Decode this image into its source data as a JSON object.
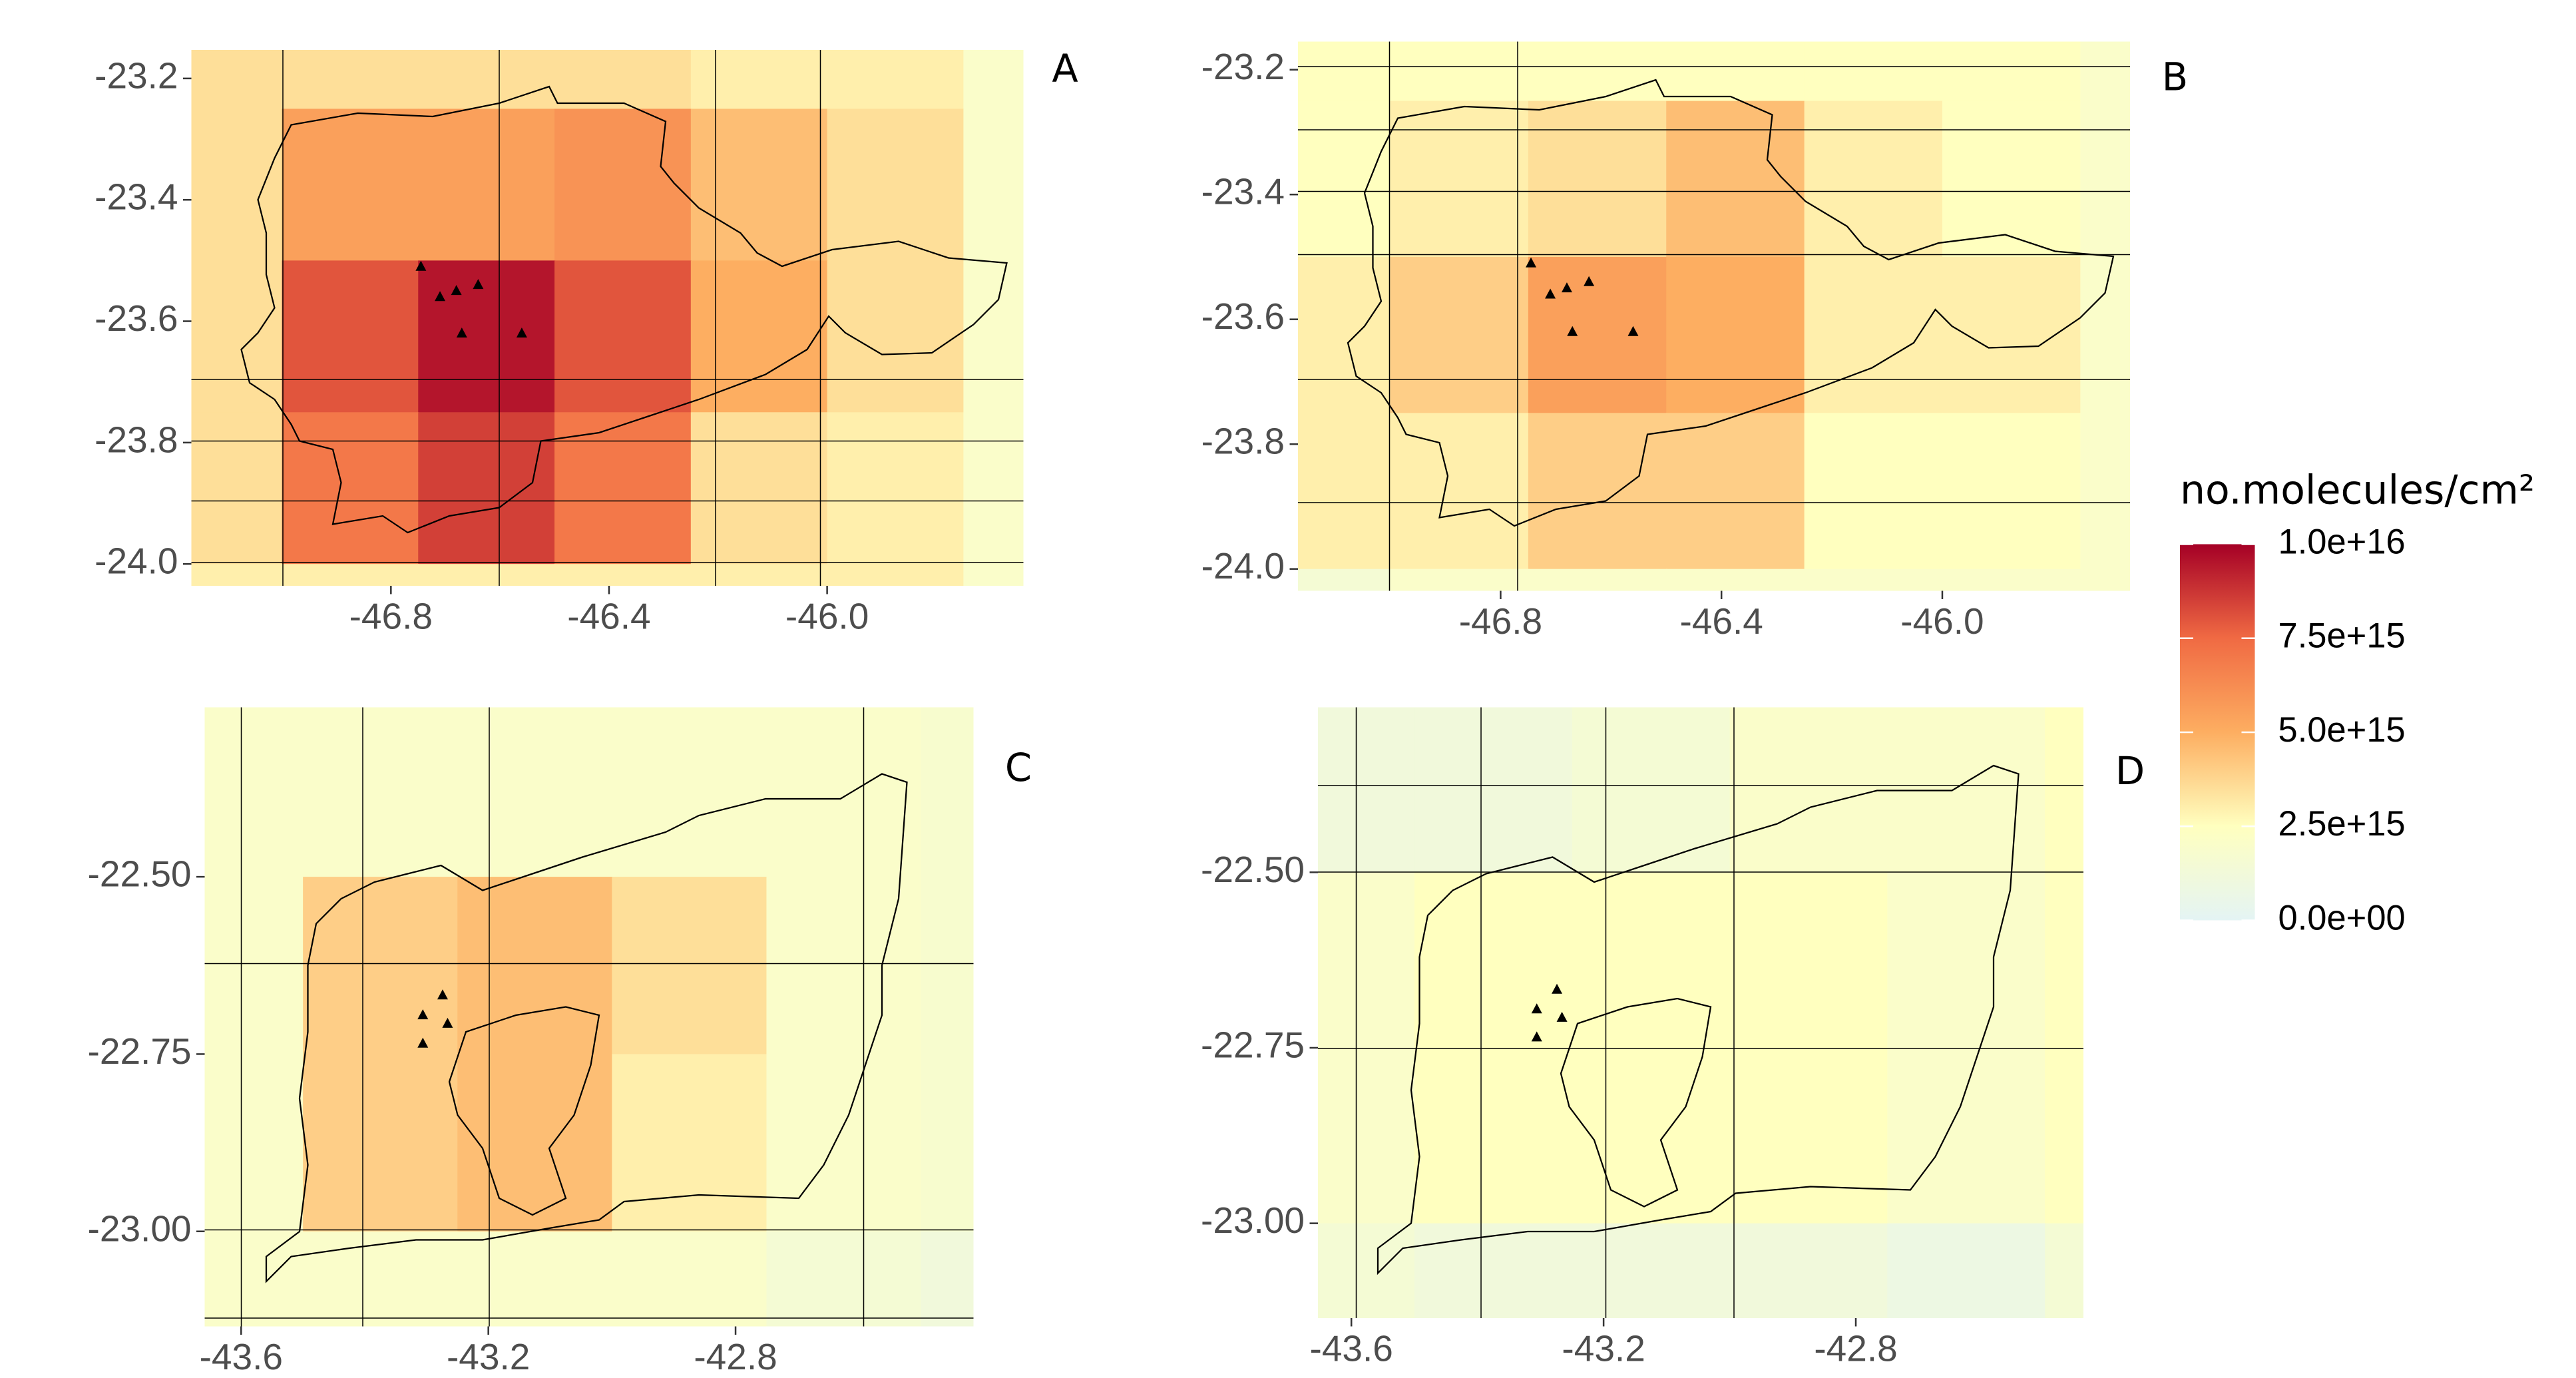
{
  "chart_data": [
    {
      "type": "heatmap",
      "label": "A",
      "x_edges": [
        -47.25,
        -47.0,
        -46.75,
        -46.5,
        -46.25,
        -46.0,
        -45.75,
        -45.5
      ],
      "y_edges": [
        -23.0,
        -23.25,
        -23.5,
        -23.75,
        -24.0,
        -24.25
      ],
      "values": [
        [
          3500000000000000.0,
          3500000000000000.0,
          3500000000000000.0,
          3500000000000000.0,
          3000000000000000.0,
          3000000000000000.0,
          2000000000000000.0
        ],
        [
          3500000000000000.0,
          5500000000000000.0,
          5500000000000000.0,
          6000000000000000.0,
          4500000000000000.0,
          3500000000000000.0,
          2000000000000000.0
        ],
        [
          3500000000000000.0,
          8000000000000000.0,
          9500000000000000.0,
          8000000000000000.0,
          5000000000000000.0,
          3500000000000000.0,
          2000000000000000.0
        ],
        [
          3500000000000000.0,
          7000000000000000.0,
          8500000000000000.0,
          7000000000000000.0,
          3500000000000000.0,
          3000000000000000.0,
          2000000000000000.0
        ],
        [
          3000000000000000.0,
          3000000000000000.0,
          3000000000000000.0,
          3000000000000000.0,
          3000000000000000.0,
          3000000000000000.0,
          2000000000000000.0
        ]
      ],
      "xlim": [
        -47.166,
        -45.64
      ],
      "ylim": [
        -24.036,
        -23.153
      ],
      "xticks": [
        -46.8,
        -46.4,
        {
          "value": -46.0,
          "label": "-46.0"
        }
      ],
      "yticks": [
        -23.2,
        -23.4,
        -23.6,
        -23.8,
        {
          "value": -24.0,
          "label": "-24.0"
        }
      ],
      "points": {
        "x": [
          -46.745,
          -46.71,
          -46.68,
          -46.64,
          -46.67,
          -46.56
        ],
        "y": [
          -23.51,
          -23.56,
          -23.55,
          -23.54,
          -23.62,
          -23.62
        ]
      }
    },
    {
      "type": "heatmap",
      "label": "B",
      "x_edges": [
        -47.25,
        -47.0,
        -46.75,
        -46.5,
        -46.25,
        -46.0,
        -45.75,
        -45.5
      ],
      "y_edges": [
        -23.0,
        -23.25,
        -23.5,
        -23.75,
        -24.0,
        -24.25
      ],
      "values": [
        [
          2500000000000000.0,
          2500000000000000.0,
          2500000000000000.0,
          2500000000000000.0,
          2500000000000000.0,
          2500000000000000.0,
          2000000000000000.0
        ],
        [
          2500000000000000.0,
          3000000000000000.0,
          3500000000000000.0,
          4500000000000000.0,
          3000000000000000.0,
          2500000000000000.0,
          2000000000000000.0
        ],
        [
          3000000000000000.0,
          4000000000000000.0,
          5500000000000000.0,
          5000000000000000.0,
          3000000000000000.0,
          3000000000000000.0,
          2000000000000000.0
        ],
        [
          3000000000000000.0,
          3000000000000000.0,
          4000000000000000.0,
          4000000000000000.0,
          2500000000000000.0,
          2500000000000000.0,
          2000000000000000.0
        ],
        [
          1500000000000000.0,
          2000000000000000.0,
          2000000000000000.0,
          2000000000000000.0,
          2000000000000000.0,
          2000000000000000.0,
          2000000000000000.0
        ]
      ],
      "xlim": [
        -47.167,
        -45.66
      ],
      "ylim": [
        -24.035,
        -23.155
      ],
      "xticks": [
        -46.8,
        -46.4,
        {
          "value": -46.0,
          "label": "-46.0"
        }
      ],
      "yticks": [
        -23.2,
        -23.4,
        -23.6,
        -23.8,
        {
          "value": -24.0,
          "label": "-24.0"
        }
      ],
      "points": {
        "x": [
          -46.745,
          -46.71,
          -46.68,
          -46.64,
          -46.67,
          -46.56
        ],
        "y": [
          -23.51,
          -23.56,
          -23.55,
          -23.54,
          -23.62,
          -23.62
        ]
      }
    },
    {
      "type": "heatmap",
      "label": "C",
      "x_edges": [
        -43.75,
        -43.5,
        -43.25,
        -43.0,
        -42.75,
        -42.5,
        -42.25
      ],
      "y_edges": [
        -22.25,
        -22.5,
        -22.75,
        -23.0,
        -23.25
      ],
      "values": [
        [
          2000000000000000.0,
          2000000000000000.0,
          2000000000000000.0,
          2000000000000000.0,
          2000000000000000.0,
          1800000000000000.0
        ],
        [
          2000000000000000.0,
          4000000000000000.0,
          4500000000000000.0,
          3500000000000000.0,
          2000000000000000.0,
          1800000000000000.0
        ],
        [
          2000000000000000.0,
          4000000000000000.0,
          4500000000000000.0,
          3000000000000000.0,
          2000000000000000.0,
          1800000000000000.0
        ],
        [
          2000000000000000.0,
          2000000000000000.0,
          2000000000000000.0,
          2000000000000000.0,
          1500000000000000.0,
          1200000000000000.0
        ]
      ],
      "xlim": [
        -43.659,
        -42.415
      ],
      "ylim": [
        -23.134,
        -22.261
      ],
      "xticks": [
        -43.6,
        -43.2,
        -42.8
      ],
      "yticks": [
        {
          "value": -22.5,
          "label": "-22.50"
        },
        -22.75,
        {
          "value": -23.0,
          "label": "-23.00"
        }
      ],
      "points": {
        "x": [
          -43.274,
          -43.306,
          -43.266,
          -43.306
        ],
        "y": [
          -22.667,
          -22.695,
          -22.707,
          -22.735
        ]
      }
    },
    {
      "type": "heatmap",
      "label": "D",
      "x_edges": [
        -43.75,
        -43.5,
        -43.25,
        -43.0,
        -42.75,
        -42.5,
        -42.25
      ],
      "y_edges": [
        -22.25,
        -22.5,
        -22.75,
        -23.0,
        -23.25
      ],
      "values": [
        [
          1200000000000000.0,
          1200000000000000.0,
          1500000000000000.0,
          2000000000000000.0,
          2000000000000000.0,
          2500000000000000.0
        ],
        [
          2000000000000000.0,
          2500000000000000.0,
          2500000000000000.0,
          2500000000000000.0,
          2000000000000000.0,
          2500000000000000.0
        ],
        [
          2000000000000000.0,
          2500000000000000.0,
          2500000000000000.0,
          2500000000000000.0,
          2000000000000000.0,
          2500000000000000.0
        ],
        [
          1500000000000000.0,
          1200000000000000.0,
          1200000000000000.0,
          1200000000000000.0,
          800000000000000.0,
          1500000000000000.0
        ]
      ],
      "xlim": [
        -43.653,
        -42.439
      ],
      "ylim": [
        -23.135,
        -22.265
      ],
      "xticks": [
        -43.6,
        -43.2,
        -42.8
      ],
      "yticks": [
        {
          "value": -22.5,
          "label": "-22.50"
        },
        -22.75,
        {
          "value": -23.0,
          "label": "-23.00"
        }
      ],
      "points": {
        "x": [
          -43.274,
          -43.306,
          -43.266,
          -43.306
        ],
        "y": [
          -22.667,
          -22.695,
          -22.707,
          -22.735
        ]
      }
    }
  ],
  "colorbar": {
    "title": "no.molecules/cm²",
    "lim": [
      0,
      1e+16
    ],
    "colors": [
      "#e4f4f4",
      "#ffffbf",
      "#fdae61",
      "#f06a43",
      "#a50026"
    ],
    "ticks": [
      {
        "value": 1e+16,
        "label": "1.0e+16"
      },
      {
        "value": 7500000000000000.0,
        "label": "7.5e+15"
      },
      {
        "value": 5000000000000000.0,
        "label": "5.0e+15"
      },
      {
        "value": 2500000000000000.0,
        "label": "2.5e+15"
      },
      {
        "value": 0,
        "label": "0.0e+00"
      }
    ]
  }
}
